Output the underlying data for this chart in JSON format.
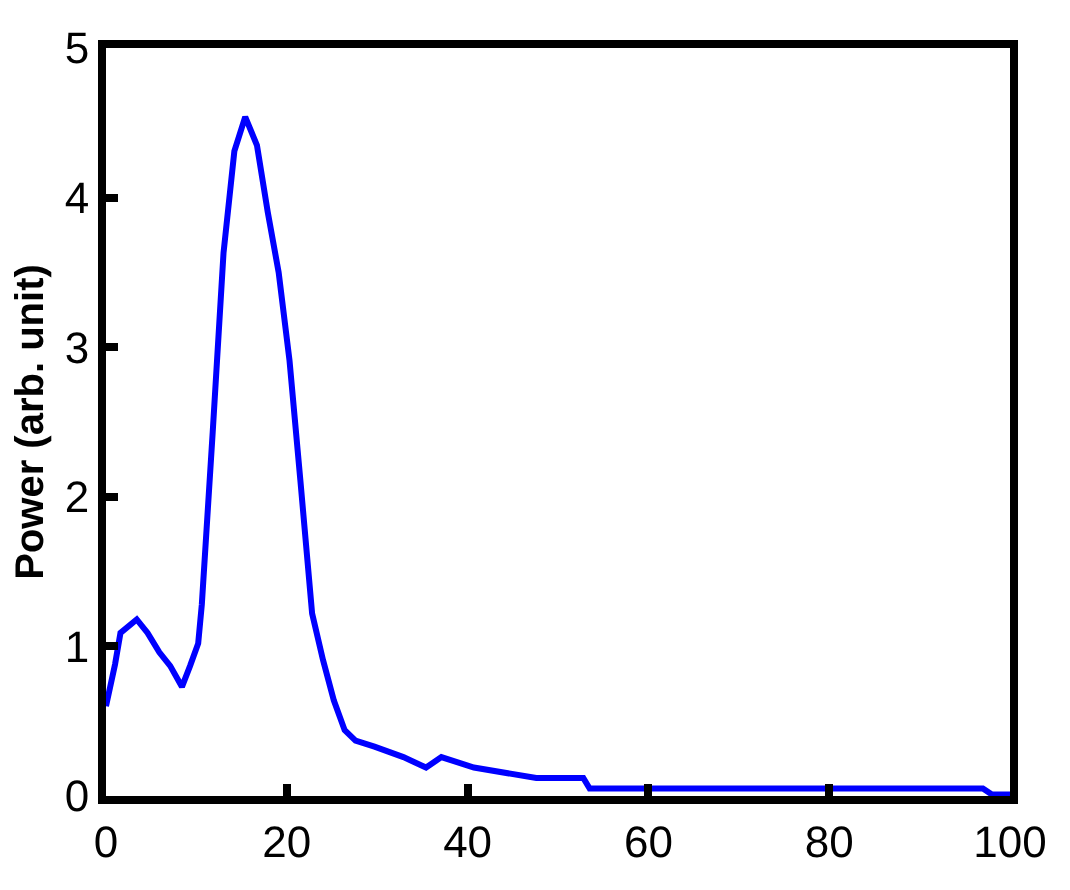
{
  "chart_data": {
    "type": "line",
    "ylabel": "Power (arb. unit)",
    "x": [
      0,
      1,
      1.6,
      3.4,
      4.6,
      5.9,
      7.1,
      8.4,
      9.3,
      10.2,
      10.6,
      11.8,
      13,
      14.2,
      15.4,
      16.7,
      17.9,
      19.1,
      20.3,
      21.5,
      22.8,
      24,
      25.2,
      26.4,
      27.6,
      29.7,
      32.9,
      35.4,
      37.1,
      40.7,
      47.6,
      52.8,
      53.5,
      97,
      98,
      100
    ],
    "series": [
      {
        "color": "#0000ff",
        "values": [
          0.6,
          0.88,
          1.09,
          1.18,
          1.09,
          0.96,
          0.87,
          0.73,
          0.87,
          1.02,
          1.28,
          2.43,
          3.63,
          4.31,
          4.54,
          4.35,
          3.9,
          3.5,
          2.91,
          2.11,
          1.22,
          0.91,
          0.64,
          0.44,
          0.37,
          0.33,
          0.26,
          0.19,
          0.26,
          0.19,
          0.12,
          0.12,
          0.05,
          0.05,
          0.01,
          0.01
        ]
      }
    ],
    "xlim": [
      0,
      100
    ],
    "ylim": [
      0,
      5
    ],
    "xticks": [
      0,
      20,
      40,
      60,
      80,
      100
    ],
    "yticks": [
      0,
      1,
      2,
      3,
      4,
      5
    ],
    "legend": false,
    "marker": "none",
    "line_style": "solid"
  }
}
